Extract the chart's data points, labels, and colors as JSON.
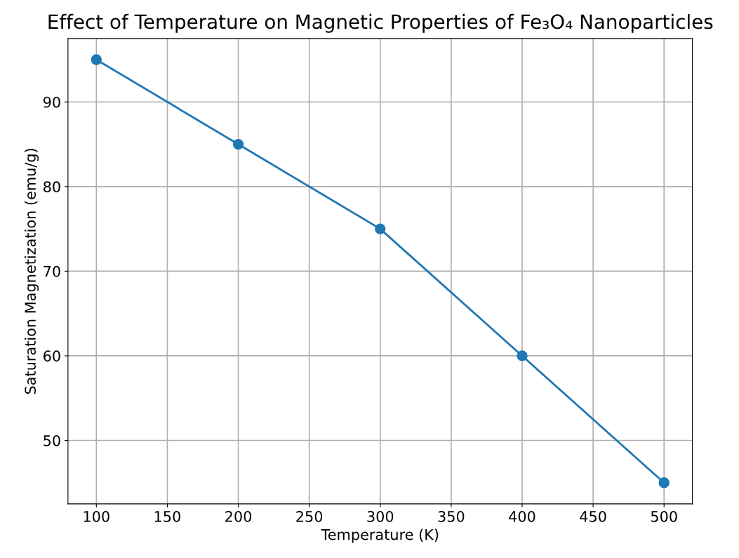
{
  "chart_data": {
    "type": "line",
    "title": "Effect of Temperature on Magnetic Properties of Fe₃O₄ Nanoparticles",
    "xlabel": "Temperature (K)",
    "ylabel": "Saturation Magnetization (emu/g)",
    "x": [
      100,
      200,
      300,
      400,
      500
    ],
    "series": [
      {
        "color": "#1f77b4",
        "values": [
          95,
          85,
          75,
          60,
          45
        ]
      }
    ],
    "xlim": [
      80,
      520
    ],
    "xticks": [
      100,
      150,
      200,
      250,
      300,
      350,
      400,
      450,
      500
    ],
    "ylim": [
      42.5,
      97.5
    ],
    "yticks": [
      50,
      60,
      70,
      80,
      90
    ],
    "grid": true,
    "marker": "circle",
    "line_style": "solid"
  }
}
